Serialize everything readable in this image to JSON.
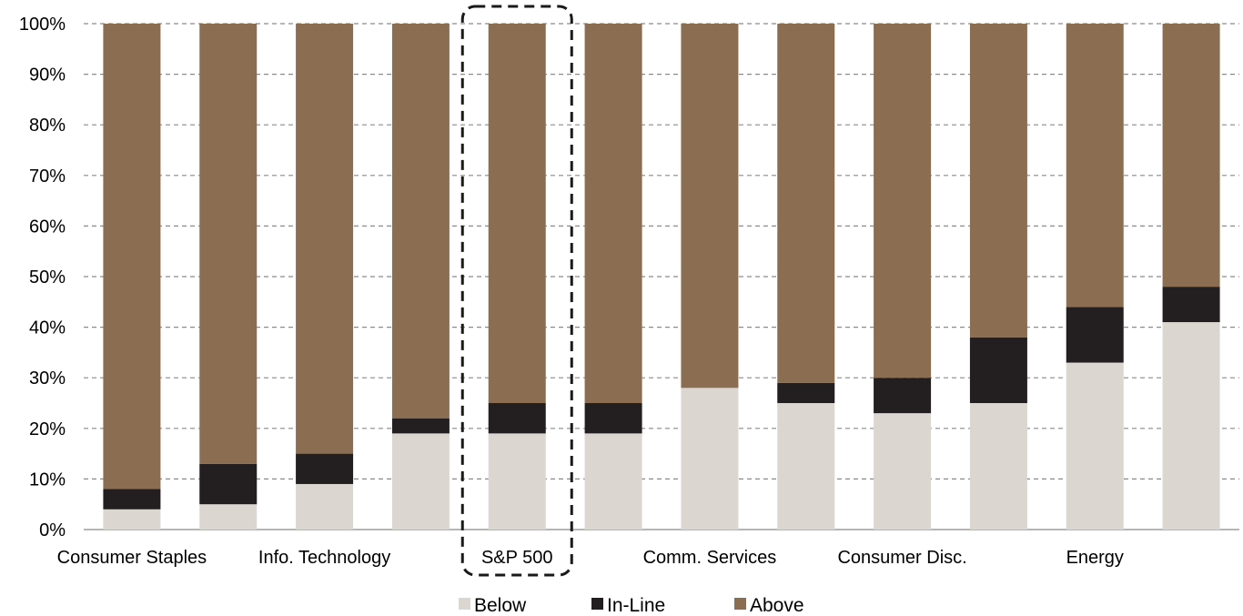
{
  "chart_data": {
    "type": "bar",
    "stacked": true,
    "title": "",
    "xlabel": "",
    "ylabel": "",
    "ylim": [
      0,
      100
    ],
    "y_ticks": [
      "0%",
      "10%",
      "20%",
      "30%",
      "40%",
      "50%",
      "60%",
      "70%",
      "80%",
      "90%",
      "100%"
    ],
    "categories": [
      "Consumer Staples",
      "",
      "Info. Technology",
      "",
      "S&P 500",
      "",
      "Comm. Services",
      "",
      "Consumer Disc.",
      "",
      "Energy",
      ""
    ],
    "series": [
      {
        "name": "Below",
        "color": "#dcd6d1",
        "values": [
          4,
          5,
          9,
          19,
          19,
          19,
          28,
          25,
          23,
          25,
          33,
          41
        ]
      },
      {
        "name": "In-Line",
        "color": "#231f20",
        "values": [
          4,
          8,
          6,
          3,
          6,
          6,
          0,
          4,
          7,
          13,
          11,
          7
        ]
      },
      {
        "name": "Above",
        "color": "#8b6e52",
        "values": [
          92,
          87,
          85,
          78,
          75,
          75,
          72,
          71,
          70,
          62,
          56,
          52
        ]
      }
    ],
    "highlight": "S&P 500",
    "grid": true,
    "legend_position": "bottom"
  }
}
